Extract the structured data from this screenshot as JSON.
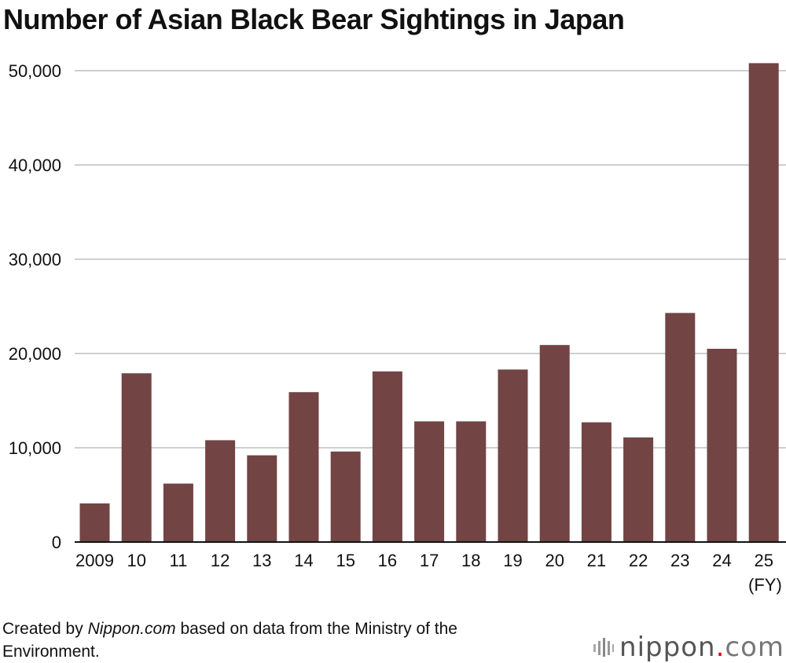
{
  "chart_data": {
    "type": "bar",
    "title": "Number of Asian Black Bear Sightings in Japan",
    "categories": [
      "2009",
      "10",
      "11",
      "12",
      "13",
      "14",
      "15",
      "16",
      "17",
      "18",
      "19",
      "20",
      "21",
      "22",
      "23",
      "24",
      "25"
    ],
    "values": [
      4100,
      17900,
      6200,
      10800,
      9200,
      15900,
      9600,
      18100,
      12800,
      12800,
      18300,
      20900,
      12700,
      11100,
      24300,
      20500,
      50800
    ],
    "xlabel": "(FY)",
    "ylabel": "",
    "ylim": [
      0,
      50000
    ],
    "yticks": [
      "0",
      "10,000",
      "20,000",
      "30,000",
      "40,000",
      "50,000"
    ],
    "ytick_values": [
      0,
      10000,
      20000,
      30000,
      40000,
      50000
    ],
    "grid": true,
    "bar_color": "#734444",
    "grid_color": "#cfcfcf"
  },
  "credit": {
    "prefix": "Created by ",
    "site": "Nippon.com",
    "suffix": " based on data from the Ministry of the Environment."
  },
  "brand": {
    "name": "nippon",
    "dot": ".",
    "tld": "com"
  }
}
